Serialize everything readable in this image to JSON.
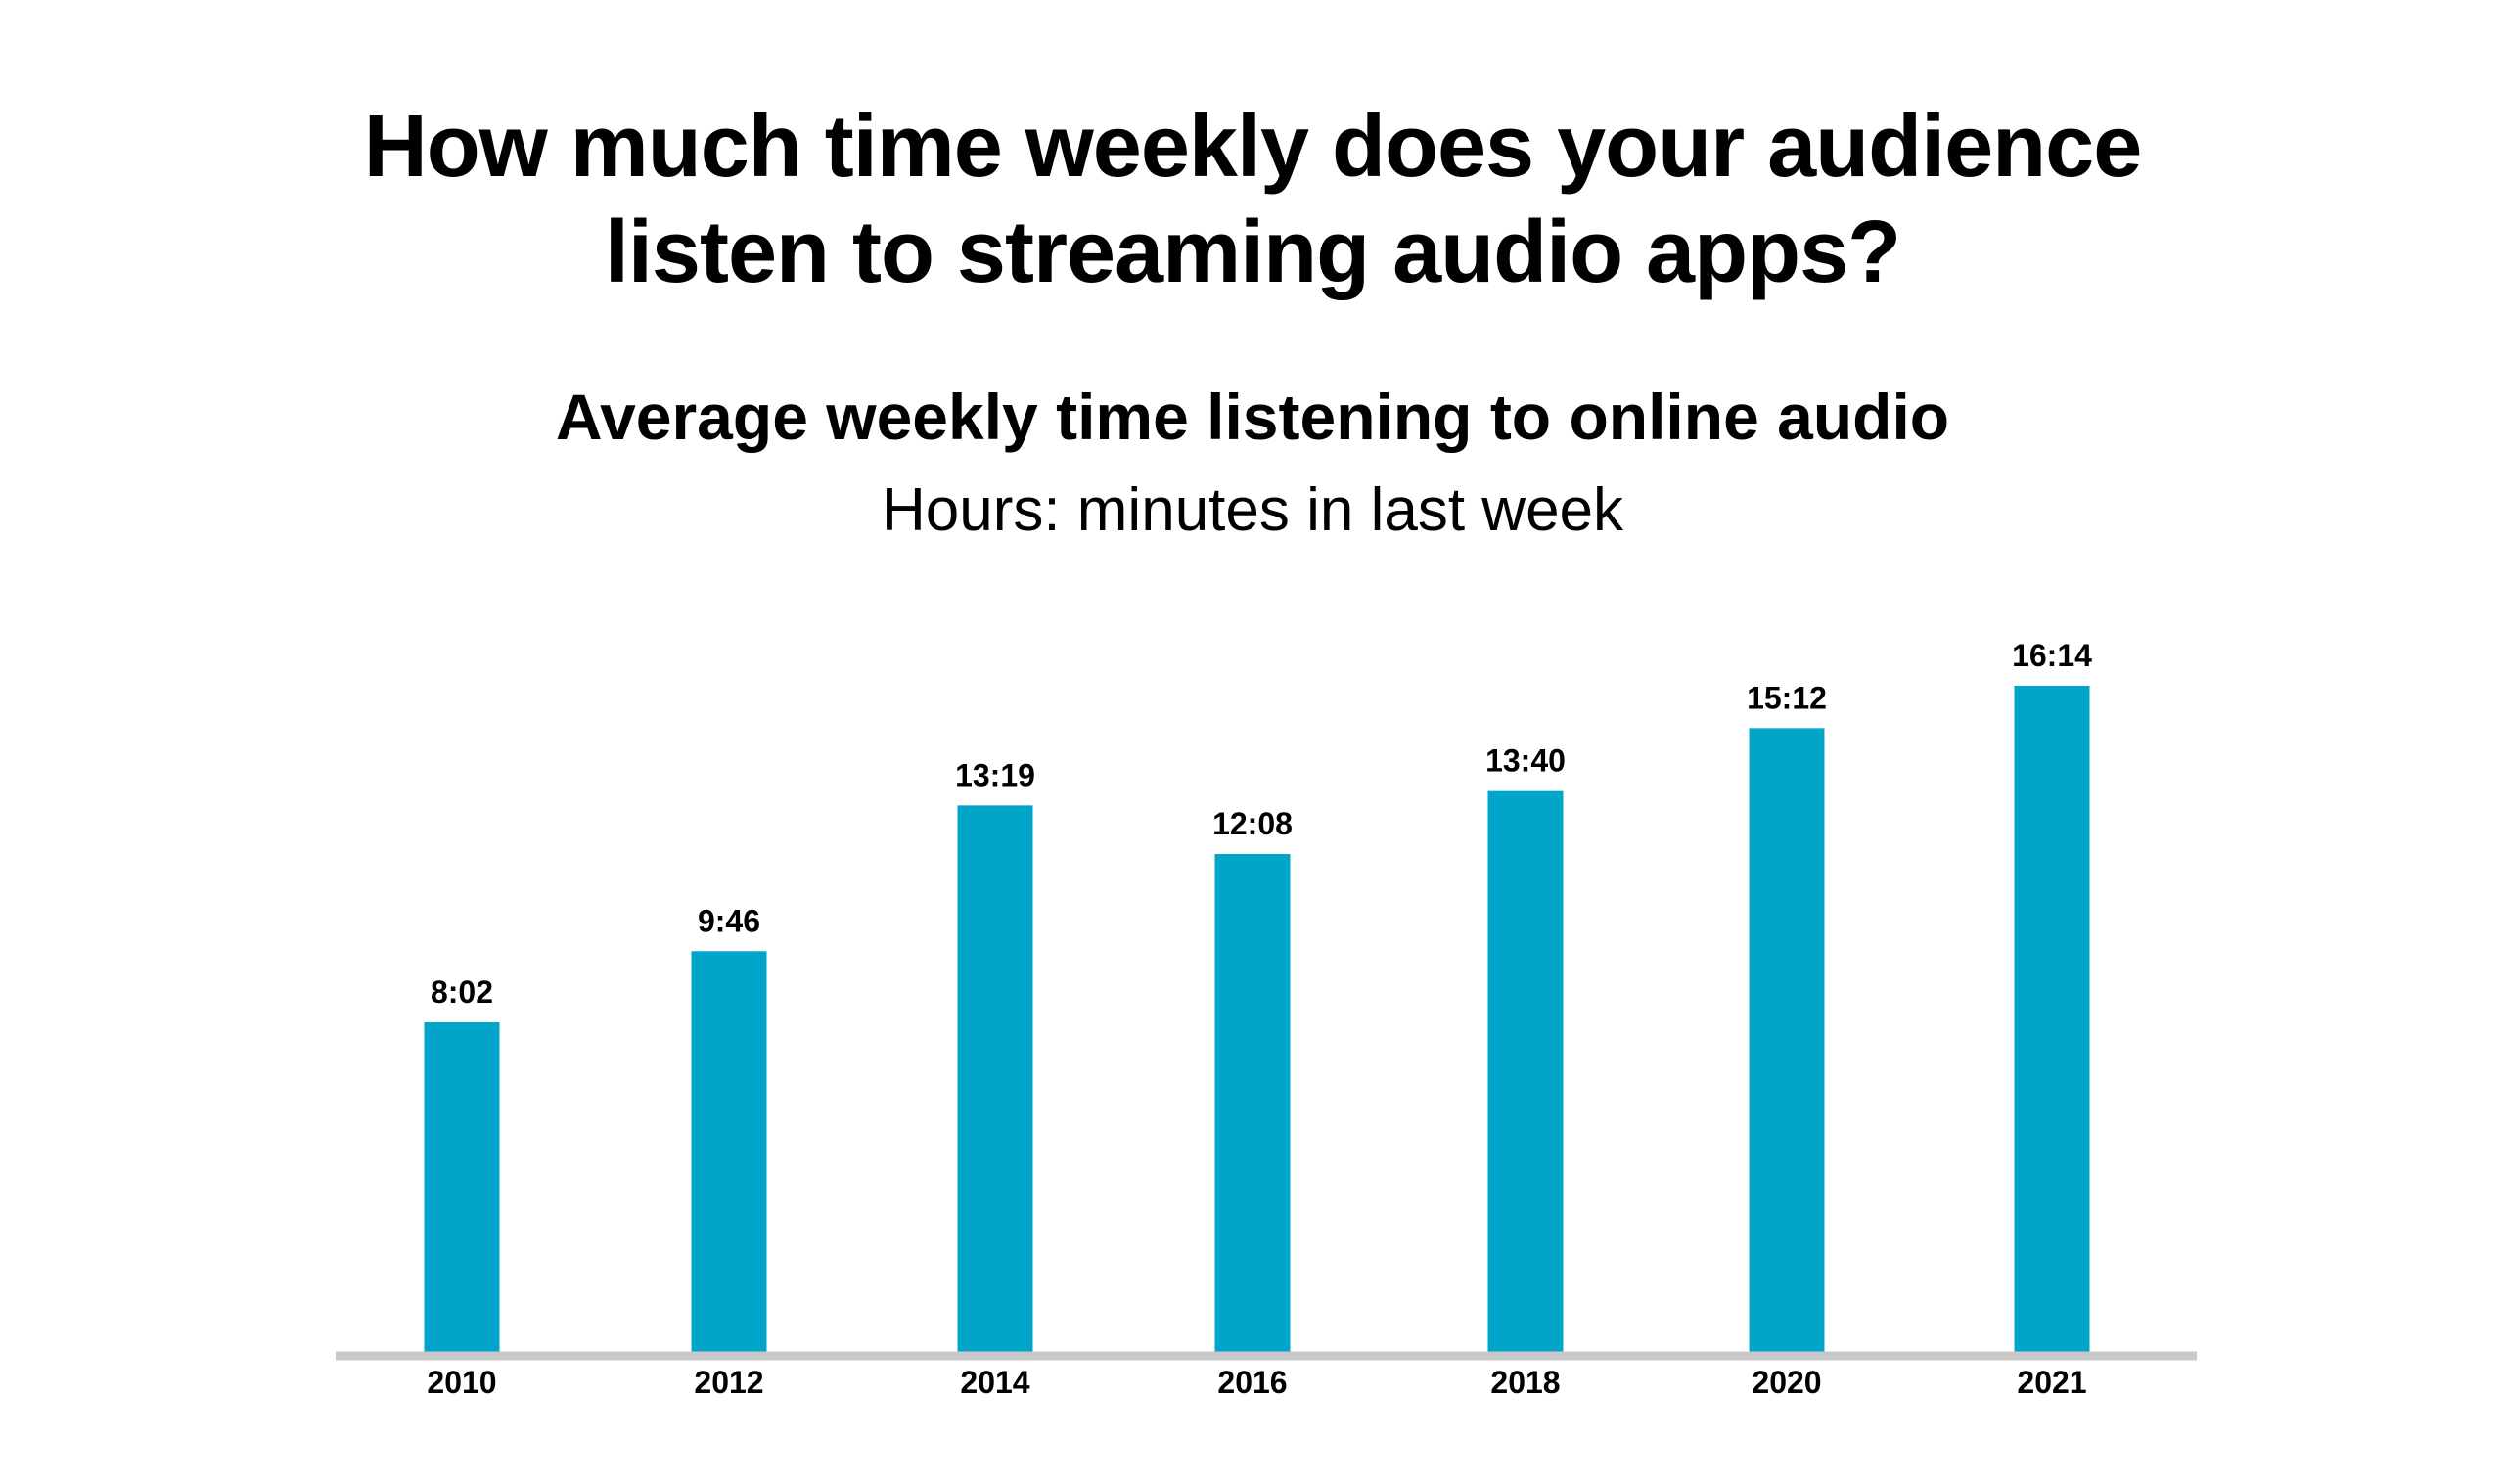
{
  "header": {
    "title_line1": "How much time weekly does your audience",
    "title_line2": "listen to streaming audio apps?",
    "subtitle": "Average weekly time listening to online audio",
    "units": "Hours: minutes in last week"
  },
  "colors": {
    "bar": "#00a5c9",
    "axis": "#c8c8c8",
    "text": "#000000"
  },
  "chart_data": {
    "type": "bar",
    "categories": [
      "2010",
      "2012",
      "2014",
      "2016",
      "2018",
      "2020",
      "2021"
    ],
    "values": [
      482,
      586,
      799,
      728,
      820,
      912,
      974
    ],
    "value_unit": "minutes",
    "data_labels": [
      "8:02",
      "9:46",
      "13:19",
      "12:08",
      "13:40",
      "15:12",
      "16:14"
    ],
    "title": "Average weekly time listening to online audio",
    "xlabel": "",
    "ylabel": "Hours: minutes in last week",
    "ylim": [
      0,
      974
    ],
    "grid": false,
    "legend": "none"
  }
}
